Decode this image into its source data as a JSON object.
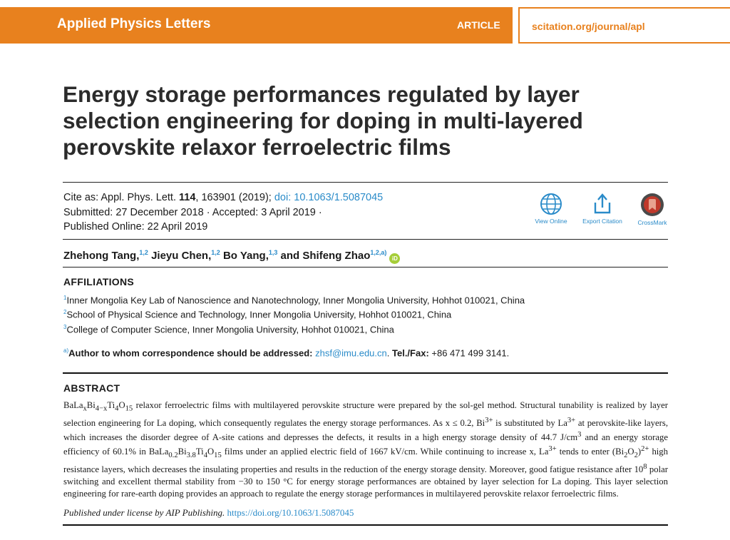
{
  "header": {
    "journal": "Applied Physics Letters",
    "article_type": "ARTICLE",
    "url": "scitation.org/journal/apl"
  },
  "title": "Energy storage performances regulated by layer selection engineering for doping in multi-layered perovskite relaxor ferroelectric films",
  "citation": {
    "cite_prefix": "Cite as: Appl. Phys. Lett. ",
    "volume": "114",
    "cite_rest": ", 163901 (2019); ",
    "doi": "doi: 10.1063/1.5087045",
    "submitted": "Submitted: 27 December 2018 · Accepted: 3 April 2019 ·",
    "published": "Published Online: 22 April 2019"
  },
  "actions": {
    "view_online": "View Online",
    "export_citation": "Export Citation",
    "crossmark": "CrossMark"
  },
  "authors": [
    {
      "name": "Zhehong Tang,",
      "aff": "1,2"
    },
    {
      "name": "Jieyu Chen,",
      "aff": "1,2"
    },
    {
      "name": "Bo Yang,",
      "aff": "1,3"
    },
    {
      "name": "and Shifeng Zhao",
      "aff": "1,2,a)"
    }
  ],
  "orcid_label": "iD",
  "affiliations_heading": "AFFILIATIONS",
  "affiliations": [
    {
      "mark": "1",
      "text": "Inner Mongolia Key Lab of Nanoscience and Nanotechnology, Inner Mongolia University, Hohhot 010021, China"
    },
    {
      "mark": "2",
      "text": "School of Physical Science and Technology, Inner Mongolia University, Hohhot 010021, China"
    },
    {
      "mark": "3",
      "text": "College of Computer Science, Inner Mongolia University, Hohhot 010021, China"
    }
  ],
  "correspondence": {
    "mark": "a)",
    "label": "Author to whom correspondence should be addressed: ",
    "email": "zhsf@imu.edu.cn",
    "tel_label": "Tel./Fax:",
    "tel": " +86 471 499 3141."
  },
  "abstract_heading": "ABSTRACT",
  "abstract_html": "BaLa<sub>x</sub>Bi<sub>4−x</sub>Ti<sub>4</sub>O<sub>15</sub> relaxor ferroelectric films with multilayered perovskite structure were prepared by the sol-gel method. Structural tunability is realized by layer selection engineering for La doping, which consequently regulates the energy storage performances. As x ≤ 0.2, Bi<sup>3+</sup> is substituted by La<sup>3+</sup> at perovskite-like layers, which increases the disorder degree of A-site cations and depresses the defects, it results in a high energy storage density of 44.7 J/cm<sup>3</sup> and an energy storage efficiency of 60.1% in BaLa<sub>0.2</sub>Bi<sub>3.8</sub>Ti<sub>4</sub>O<sub>15</sub> films under an applied electric field of 1667 kV/cm. While continuing to increase x, La<sup>3+</sup> tends to enter (Bi<sub>2</sub>O<sub>2</sub>)<sup>2+</sup> high resistance layers, which decreases the insulating properties and results in the reduction of the energy storage density. Moreover, good fatigue resistance after 10<sup>8</sup> polar switching and excellent thermal stability from −30 to 150 °C for energy storage performances are obtained by layer selection for La doping. This layer selection engineering for rare-earth doping provides an approach to regulate the energy storage performances in multilayered perovskite relaxor ferroelectric films.",
  "license": {
    "text": "Published under license by AIP Publishing.",
    "link": "https://doi.org/10.1063/1.5087045"
  },
  "colors": {
    "brand_orange": "#e8811e",
    "link_blue": "#2a8bc9",
    "crossmark_red": "#c0392b",
    "orcid_green": "#a6ce39"
  }
}
